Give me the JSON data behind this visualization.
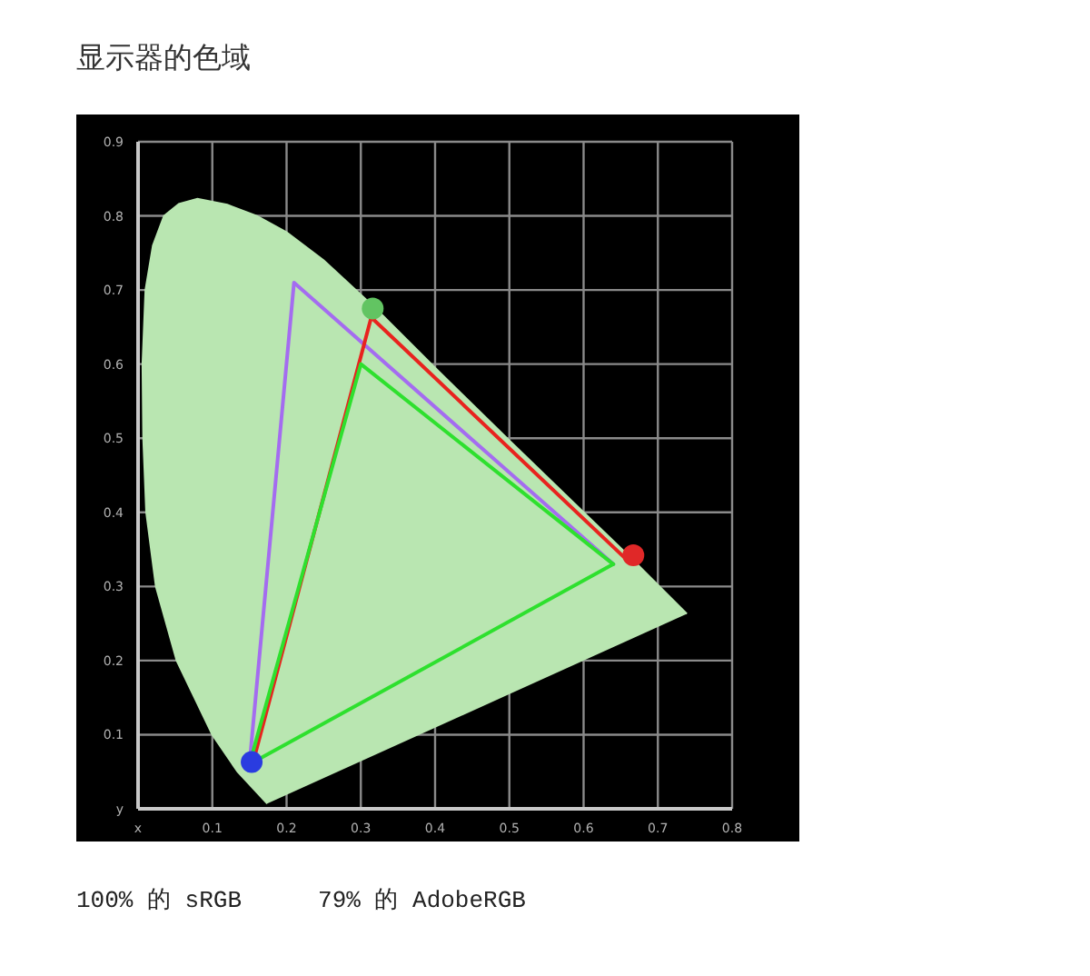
{
  "chart_data": {
    "type": "line",
    "title": "显示器的色域",
    "annotations": [
      "100% 的 sRGB",
      "79% 的 AdobeRGB"
    ],
    "xlim": [
      0,
      0.8
    ],
    "ylim": [
      0,
      0.9
    ],
    "xticks": [
      {
        "value": 0,
        "label": "x"
      },
      0.1,
      0.2,
      0.3,
      0.4,
      0.5,
      0.6,
      0.7,
      0.8
    ],
    "yticks": [
      {
        "value": 0,
        "label": "y"
      },
      0.1,
      0.2,
      0.3,
      0.4,
      0.5,
      0.6,
      0.7,
      0.8,
      0.9
    ],
    "grid": true,
    "marker": "none",
    "line_style": "solid",
    "series": [
      {
        "type": "area",
        "color": "#b9e6b1",
        "x": [
          0.174,
          0.134,
          0.1,
          0.052,
          0.024,
          0.011,
          0.007,
          0.006,
          0.01,
          0.02,
          0.035,
          0.055,
          0.08,
          0.12,
          0.16,
          0.2,
          0.25,
          0.29,
          0.32,
          0.4,
          0.5,
          0.6,
          0.66,
          0.739
        ],
        "values": [
          0.007,
          0.05,
          0.1,
          0.2,
          0.3,
          0.4,
          0.5,
          0.6,
          0.7,
          0.76,
          0.8,
          0.816,
          0.823,
          0.815,
          0.8,
          0.778,
          0.74,
          0.703,
          0.675,
          0.595,
          0.497,
          0.4,
          0.342,
          0.263
        ]
      },
      {
        "type": "line",
        "color": "#a46cf0",
        "x": [
          0.15,
          0.21,
          0.64
        ],
        "values": [
          0.06,
          0.71,
          0.33
        ]
      },
      {
        "type": "line",
        "color": "#e8231e",
        "x": [
          0.156,
          0.314,
          0.657
        ],
        "values": [
          0.067,
          0.663,
          0.337
        ]
      },
      {
        "type": "line",
        "color": "#2ee02e",
        "x": [
          0.15,
          0.3,
          0.64
        ],
        "values": [
          0.06,
          0.6,
          0.33
        ]
      },
      {
        "type": "line",
        "color": "#2ee02e",
        "x": [
          0.15,
          0.64
        ],
        "values": [
          0.06,
          0.33
        ]
      },
      {
        "type": "scatter",
        "marker": "circle",
        "colors": [
          "#62c462",
          "#e02828",
          "#2a3ce0"
        ],
        "x": [
          0.316,
          0.667,
          0.153
        ],
        "values": [
          0.675,
          0.342,
          0.063
        ]
      }
    ]
  }
}
